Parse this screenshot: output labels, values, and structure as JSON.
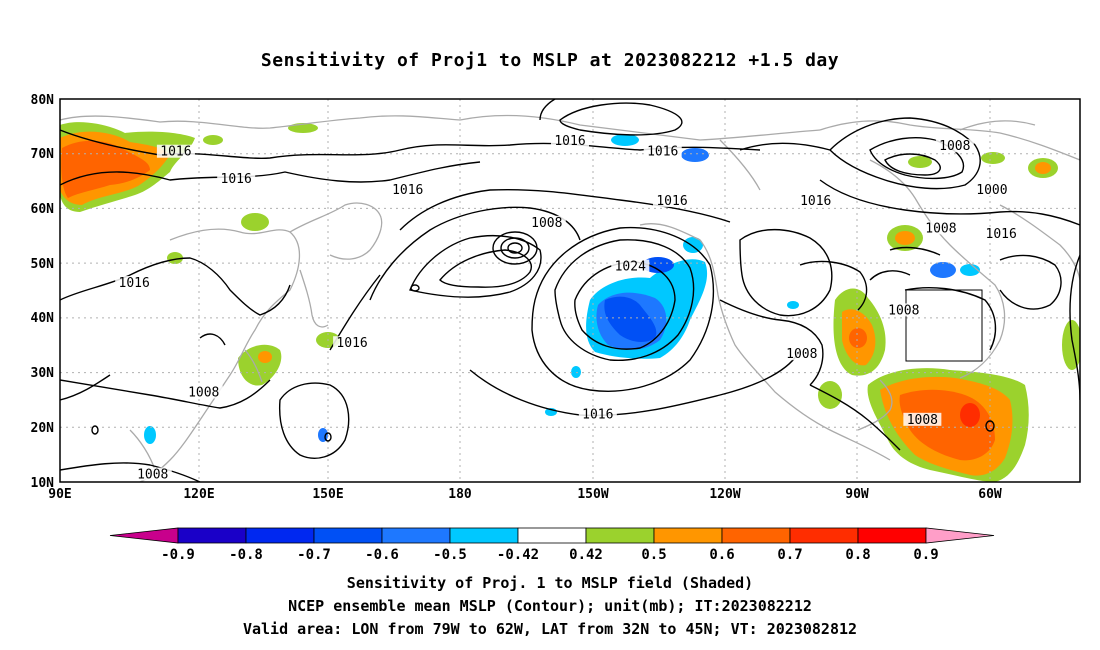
{
  "title": "Sensitivity of Proj1 to MSLP at 2023082212 +1.5 day",
  "axes": {
    "lat_labels": [
      "80N",
      "70N",
      "60N",
      "50N",
      "40N",
      "30N",
      "20N",
      "10N"
    ],
    "lon_labels": [
      "90E",
      "120E",
      "150E",
      "180",
      "150W",
      "120W",
      "90W",
      "60W"
    ]
  },
  "chart_data": {
    "type": "heatmap",
    "projection": "latitude-longitude",
    "lon_range_deg_east": [
      90,
      310
    ],
    "lat_range_deg": [
      10,
      80
    ],
    "grid": true,
    "shading": "Sensitivity of Proj. 1 to MSLP field",
    "contour": "NCEP ensemble mean MSLP (mb)",
    "contour_labels": [
      {
        "text": "1016",
        "lon": 115,
        "lat": 70
      },
      {
        "text": "1016",
        "lon": 128,
        "lat": 65
      },
      {
        "text": "1016",
        "lon": 165,
        "lat": 63
      },
      {
        "text": "1016",
        "lon": 200,
        "lat": 72
      },
      {
        "text": "1016",
        "lon": 220,
        "lat": 70
      },
      {
        "text": "1016",
        "lon": 222,
        "lat": 61
      },
      {
        "text": "1008",
        "lon": 195,
        "lat": 57
      },
      {
        "text": "1024",
        "lon": 213,
        "lat": 49
      },
      {
        "text": "1016",
        "lon": 106,
        "lat": 46
      },
      {
        "text": "1016",
        "lon": 153,
        "lat": 35
      },
      {
        "text": "1008",
        "lon": 121,
        "lat": 26
      },
      {
        "text": "1008",
        "lon": 110,
        "lat": 11
      },
      {
        "text": "1016",
        "lon": 206,
        "lat": 22
      },
      {
        "text": "1008",
        "lon": 250,
        "lat": 33
      },
      {
        "text": "1016",
        "lon": 253,
        "lat": 61
      },
      {
        "text": "1008",
        "lon": 283,
        "lat": 71
      },
      {
        "text": "1000",
        "lon": 291,
        "lat": 63
      },
      {
        "text": "1008",
        "lon": 280,
        "lat": 56
      },
      {
        "text": "1016",
        "lon": 293,
        "lat": 55
      },
      {
        "text": "1008",
        "lon": 272,
        "lat": 41
      },
      {
        "text": "1008",
        "lon": 276,
        "lat": 21
      }
    ],
    "valid_area": {
      "lon": [
        -79,
        -62
      ],
      "lat": [
        32,
        45
      ]
    },
    "colorbar": {
      "labels": [
        "-0.9",
        "-0.8",
        "-0.7",
        "-0.6",
        "-0.5",
        "-0.42",
        "0.42",
        "0.5",
        "0.6",
        "0.7",
        "0.8",
        "0.9"
      ],
      "colors": [
        "#c8008c",
        "#1a00c8",
        "#0028f0",
        "#0050f5",
        "#1e78ff",
        "#00c8ff",
        "#ffffff",
        "#9bd22d",
        "#ff9600",
        "#ff6400",
        "#ff2d00",
        "#ff0000",
        "#ff9ec8"
      ]
    }
  },
  "footer": {
    "line1": "Sensitivity of Proj. 1 to MSLP field (Shaded)",
    "line2": "NCEP ensemble mean MSLP (Contour); unit(mb); IT:2023082212",
    "line3": "Valid area: LON from 79W to 62W, LAT from 32N to 45N; VT: 2023082812"
  }
}
